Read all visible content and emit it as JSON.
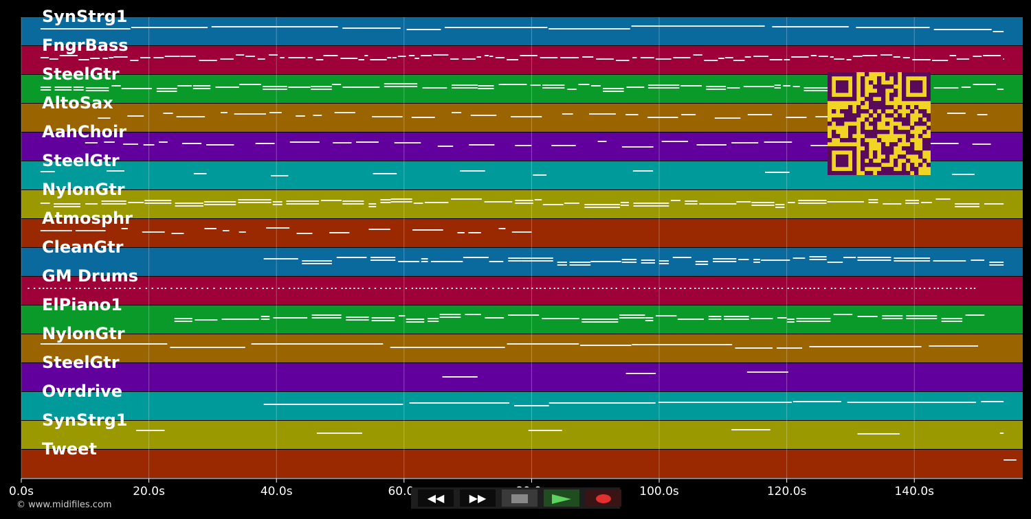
{
  "tracks": [
    {
      "name": "SynStrg1",
      "color": "#0a6a9e"
    },
    {
      "name": "FngrBass",
      "color": "#9e0038"
    },
    {
      "name": "SteelGtr",
      "color": "#0a9a2a"
    },
    {
      "name": "AltoSax",
      "color": "#9a6400"
    },
    {
      "name": "AahChoir",
      "color": "#62009e"
    },
    {
      "name": "SteelGtr",
      "color": "#009a9a"
    },
    {
      "name": "NylonGtr",
      "color": "#9a9a00"
    },
    {
      "name": "Atmosphr",
      "color": "#9a2800"
    },
    {
      "name": "CleanGtr",
      "color": "#0a6a9e"
    },
    {
      "name": "GM Drums",
      "color": "#9e0038"
    },
    {
      "name": "ElPiano1",
      "color": "#0a9a2a"
    },
    {
      "name": "NylonGtr",
      "color": "#9a6400"
    },
    {
      "name": "SteelGtr",
      "color": "#62009e"
    },
    {
      "name": "Ovrdrive",
      "color": "#009a9a"
    },
    {
      "name": "SynStrg1",
      "color": "#9a9a00"
    },
    {
      "name": "Tweet",
      "color": "#9a2800"
    }
  ],
  "time_axis": {
    "ticks": [
      "0.0s",
      "20.0s",
      "40.0s",
      "60.0s",
      "80.0s",
      "100.0s",
      "120.0s",
      "140.0s"
    ],
    "tick_values": [
      0,
      20,
      40,
      60,
      80,
      100,
      120,
      140
    ],
    "max_seconds": 157
  },
  "copyright": "© www.midifiles.com",
  "transport": {
    "rewind_icon": "rewind-icon",
    "fast_forward_icon": "fast-forward-icon",
    "stop_icon": "stop-icon",
    "play_icon": "play-icon",
    "record_icon": "record-icon",
    "stop_color": "#888888",
    "play_color": "#5fd35f",
    "record_color": "#e03030"
  },
  "qr_code": {
    "background": "#f2d524",
    "foreground": "#5a0a5a"
  }
}
